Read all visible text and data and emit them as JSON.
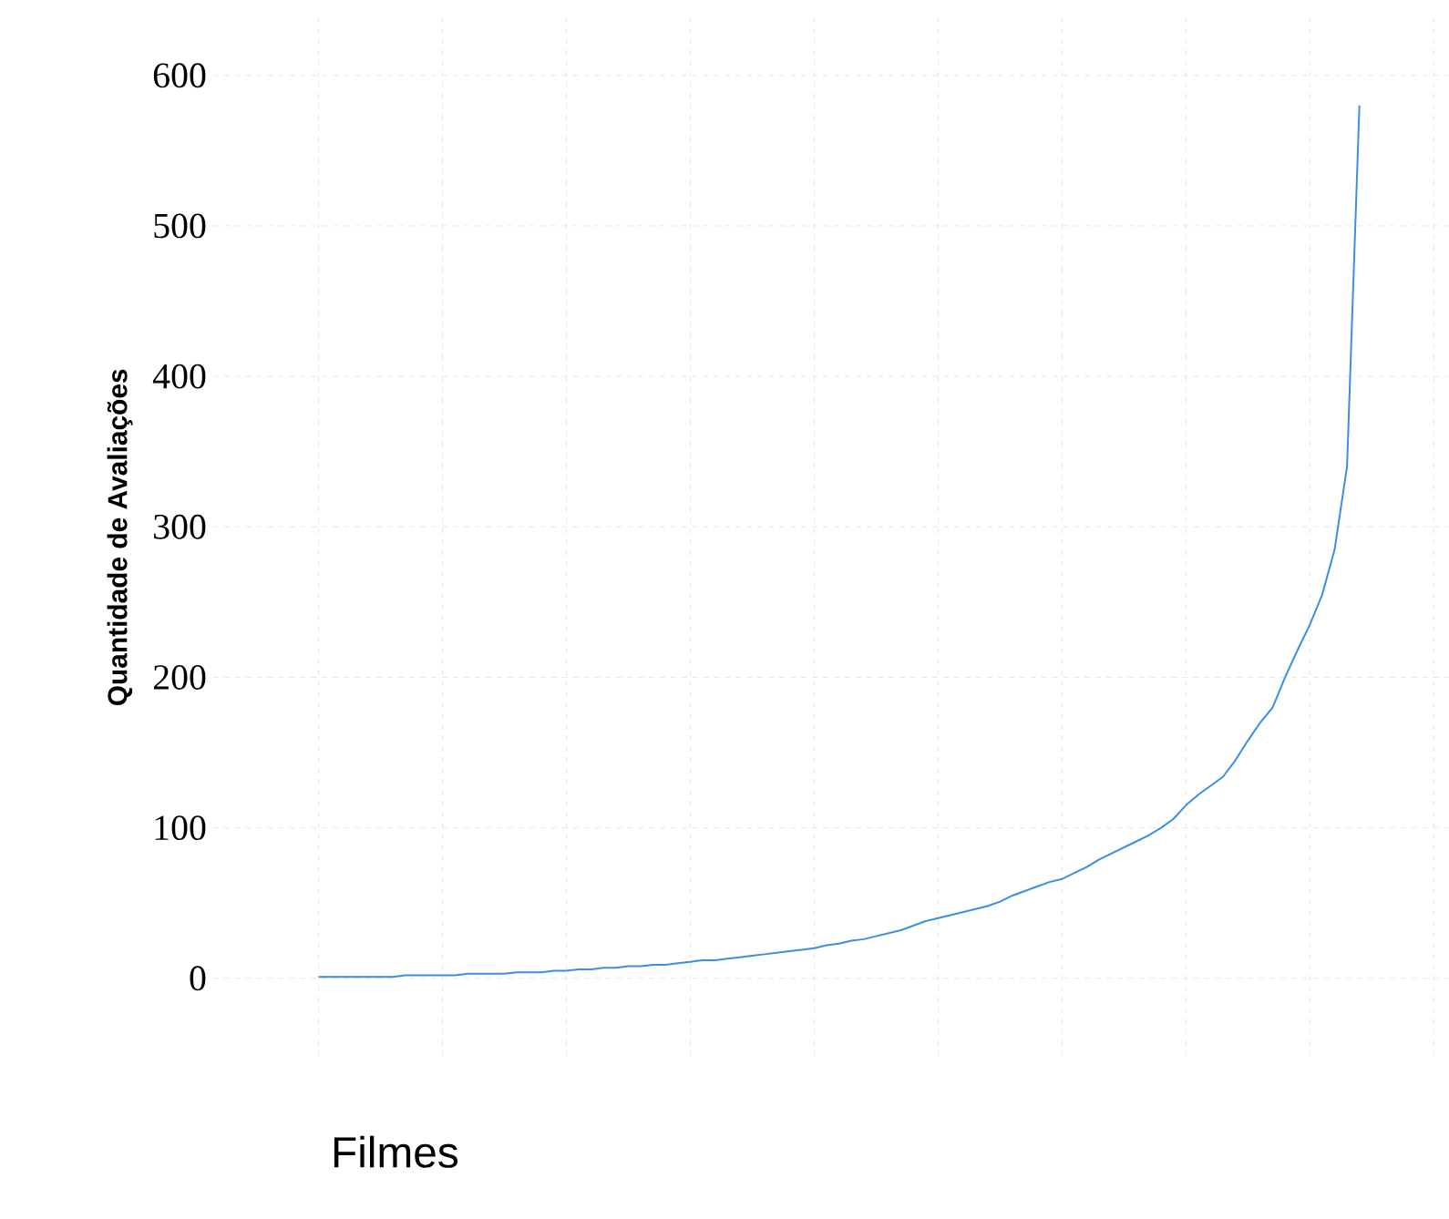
{
  "chart_data": {
    "type": "line",
    "xlabel": "Filmes",
    "ylabel": "Quantidade de  Avaliações",
    "categories": [
      null,
      null,
      null,
      null,
      null,
      null,
      null,
      null,
      null,
      null,
      null,
      null,
      null,
      null,
      null,
      null,
      null,
      null,
      null,
      null,
      null,
      null,
      null,
      null,
      null,
      null,
      null,
      null,
      null,
      null,
      null,
      null,
      null,
      null,
      null,
      null,
      null,
      null,
      null,
      null,
      null,
      null,
      null,
      null,
      null,
      null,
      null,
      null,
      null,
      null,
      null,
      null,
      null,
      null,
      null,
      null,
      null,
      null,
      null,
      null,
      null,
      null,
      null,
      null,
      null,
      null,
      null,
      null,
      null,
      null,
      null,
      null,
      null,
      null,
      null,
      null,
      null,
      null,
      null,
      null,
      null,
      null,
      null,
      null,
      null
    ],
    "values": [
      1,
      1,
      1,
      1,
      1,
      1,
      1,
      2,
      2,
      2,
      2,
      2,
      3,
      3,
      3,
      3,
      4,
      4,
      4,
      5,
      5,
      6,
      6,
      7,
      7,
      8,
      8,
      9,
      9,
      10,
      11,
      12,
      12,
      13,
      14,
      15,
      16,
      17,
      18,
      19,
      20,
      22,
      23,
      25,
      26,
      28,
      30,
      32,
      35,
      38,
      40,
      42,
      44,
      46,
      48,
      51,
      55,
      58,
      61,
      64,
      66,
      70,
      74,
      79,
      83,
      87,
      91,
      95,
      100,
      106,
      115,
      122,
      128,
      134,
      145,
      158,
      170,
      180,
      200,
      218,
      235,
      255,
      285,
      340,
      580
    ],
    "color": "#3a8ee6",
    "ylim": [
      -52,
      638
    ],
    "yticks": [
      0,
      100,
      200,
      300,
      400,
      500,
      600
    ],
    "grid": true,
    "tick_labels": "y",
    "marker": "none",
    "line_style": "solid"
  }
}
